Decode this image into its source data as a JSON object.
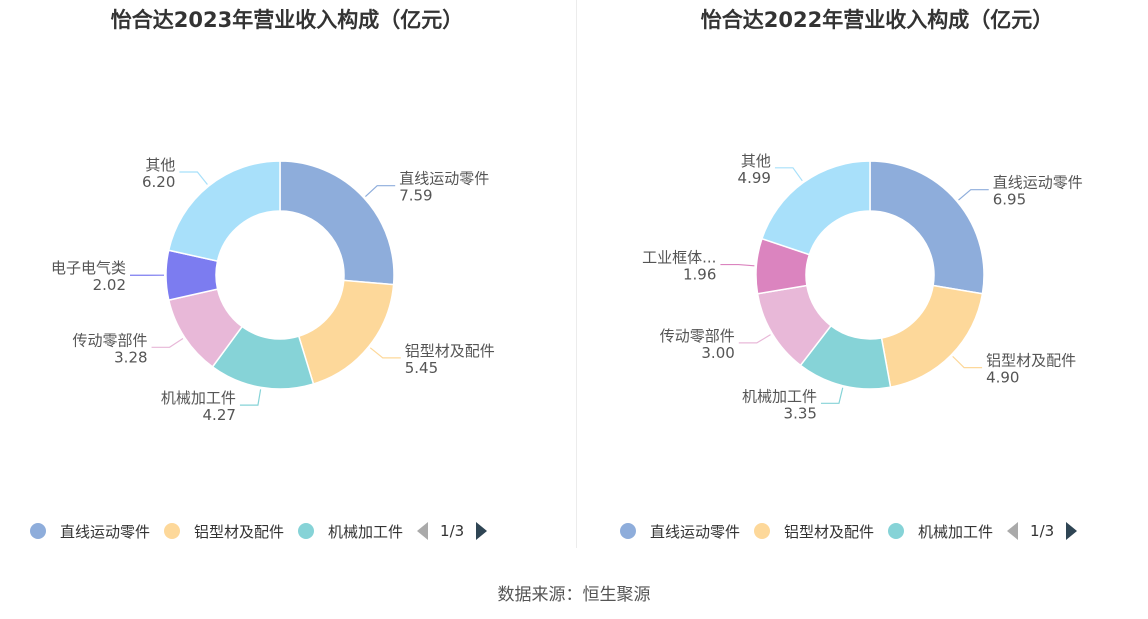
{
  "chart_data": [
    {
      "type": "pie",
      "variant": "donut",
      "title": "怡合达2023年营业收入构成（亿元）",
      "slices": [
        {
          "name": "直线运动零件",
          "value": 7.59,
          "value_label": "7.59",
          "color": "#8eaddb"
        },
        {
          "name": "铝型材及配件",
          "value": 5.45,
          "value_label": "5.45",
          "color": "#fdd89a"
        },
        {
          "name": "机械加工件",
          "value": 4.27,
          "value_label": "4.27",
          "color": "#86d3d7"
        },
        {
          "name": "传动零部件",
          "value": 3.28,
          "value_label": "3.28",
          "color": "#e8b8d8"
        },
        {
          "name": "电子电气类",
          "value": 2.02,
          "value_label": "2.02",
          "color": "#7c7cf0"
        },
        {
          "name": "其他",
          "value": 6.2,
          "value_label": "6.20",
          "color": "#a8e0fa"
        }
      ],
      "legend": {
        "position": "bottom",
        "visible_items": [
          "直线运动零件",
          "铝型材及配件",
          "机械加工件"
        ],
        "page_label": "1/3"
      }
    },
    {
      "type": "pie",
      "variant": "donut",
      "title": "怡合达2022年营业收入构成（亿元）",
      "slices": [
        {
          "name": "直线运动零件",
          "value": 6.95,
          "value_label": "6.95",
          "color": "#8eaddb"
        },
        {
          "name": "铝型材及配件",
          "value": 4.9,
          "value_label": "4.90",
          "color": "#fdd89a"
        },
        {
          "name": "机械加工件",
          "value": 3.35,
          "value_label": "3.35",
          "color": "#86d3d7"
        },
        {
          "name": "传动零部件",
          "value": 3.0,
          "value_label": "3.00",
          "color": "#e8b8d8"
        },
        {
          "name": "工业框体...",
          "value": 1.96,
          "value_label": "1.96",
          "color": "#db84bf"
        },
        {
          "name": "其他",
          "value": 4.99,
          "value_label": "4.99",
          "color": "#a8e0fa"
        }
      ],
      "legend": {
        "position": "bottom",
        "visible_items": [
          "直线运动零件",
          "铝型材及配件",
          "机械加工件"
        ],
        "page_label": "1/3"
      }
    }
  ],
  "footer": {
    "source": "数据来源：恒生聚源"
  }
}
